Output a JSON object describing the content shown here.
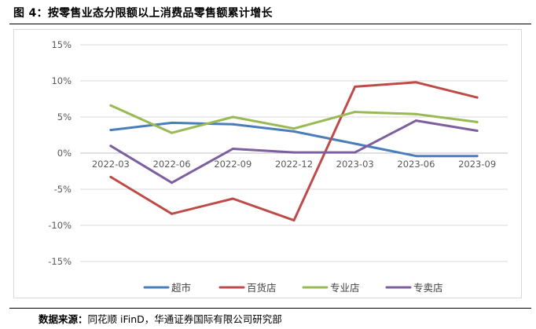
{
  "figure": {
    "title": "图 4：按零售业态分限额以上消费品零售额累计增长",
    "source_label": "数据来源：",
    "source_text": "同花顺 iFinD，华通证券国际有限公司研究部"
  },
  "chart_data": {
    "type": "line",
    "categories": [
      "2022-03",
      "2022-06",
      "2022-09",
      "2022-12",
      "2023-03",
      "2023-06",
      "2023-09"
    ],
    "y_tick_labels": [
      "15%",
      "10%",
      "5%",
      "0%",
      "-5%",
      "-10%",
      "-15%"
    ],
    "ylim": [
      -15,
      15
    ],
    "y_unit": "%",
    "grid": "horizontal",
    "legend_position": "bottom",
    "series": [
      {
        "name": "超市",
        "color": "#4a7ebb",
        "values": [
          3.2,
          4.2,
          4.0,
          3.0,
          1.3,
          -0.4,
          -0.4
        ]
      },
      {
        "name": "百货店",
        "color": "#be4b48",
        "values": [
          -3.3,
          -8.4,
          -6.3,
          -9.3,
          9.2,
          9.8,
          7.7
        ]
      },
      {
        "name": "专业店",
        "color": "#98b954",
        "values": [
          6.6,
          2.8,
          5.0,
          3.4,
          5.7,
          5.4,
          4.3
        ]
      },
      {
        "name": "专卖店",
        "color": "#7d5fa0",
        "values": [
          1.0,
          -4.1,
          0.6,
          0.1,
          0.1,
          4.5,
          3.1
        ]
      }
    ]
  }
}
